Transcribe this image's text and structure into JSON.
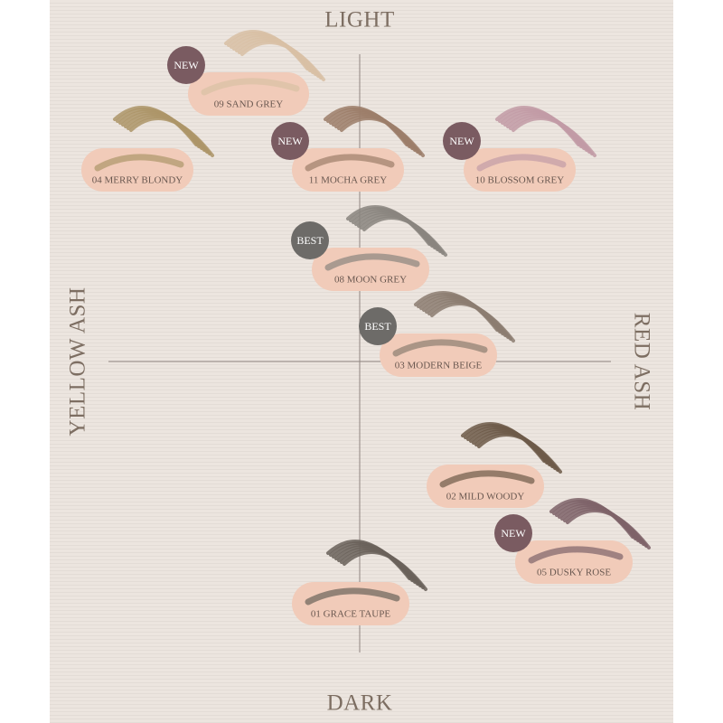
{
  "axes": {
    "top": "LIGHT",
    "bottom": "DARK",
    "left": "YELLOW ASH",
    "right": "RED ASH"
  },
  "products": [
    {
      "label": "09 SAND GREY",
      "badge": "NEW"
    },
    {
      "label": "04 MERRY BLONDY"
    },
    {
      "label": "11 MOCHA GREY",
      "badge": "NEW"
    },
    {
      "label": "10 BLOSSOM GREY",
      "badge": "NEW"
    },
    {
      "label": "08 MOON GREY",
      "badge": "BEST"
    },
    {
      "label": "03 MODERN BEIGE",
      "badge": "BEST"
    },
    {
      "label": "02 MILD WOODY"
    },
    {
      "label": "05 DUSKY ROSE",
      "badge": "NEW"
    },
    {
      "label": "01 GRACE TAUPE"
    }
  ]
}
